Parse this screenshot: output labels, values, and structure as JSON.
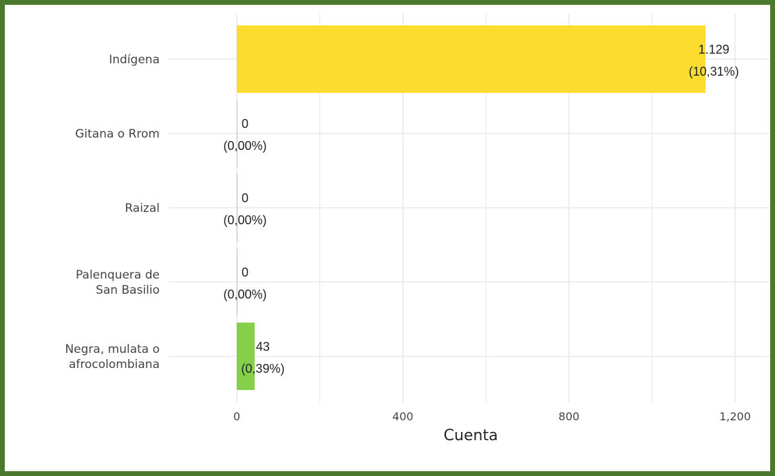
{
  "colors": {
    "frame": "#4b7a2f",
    "grid": "#e6e9ee",
    "background": "#ffffff"
  },
  "chart_data": {
    "type": "bar",
    "orientation": "horizontal",
    "categories": [
      "Indígena",
      "Gitana o Rrom",
      "Raizal",
      "Palenquera de\nSan Basilio",
      "Negra, mulata o\nafrocolombiana"
    ],
    "values": [
      1129,
      0,
      0,
      0,
      43
    ],
    "value_labels": [
      "1.129",
      "0",
      "0",
      "0",
      "43"
    ],
    "percent_labels": [
      "(10,31%)",
      "(0,00%)",
      "(0,00%)",
      "(0,00%)",
      "(0,39%)"
    ],
    "bar_colors": [
      "#fcdc2f",
      "#b8cfe0",
      "#f2b8b8",
      "#f2b8b8",
      "#86cf48"
    ],
    "xlabel": "Cuenta",
    "ylabel": "",
    "xlim": [
      0,
      1260
    ],
    "xticks": [
      0,
      400,
      800,
      1200
    ],
    "xtick_labels": [
      "0",
      "400",
      "800",
      "1,200"
    ],
    "grid": true,
    "legend": "none"
  }
}
